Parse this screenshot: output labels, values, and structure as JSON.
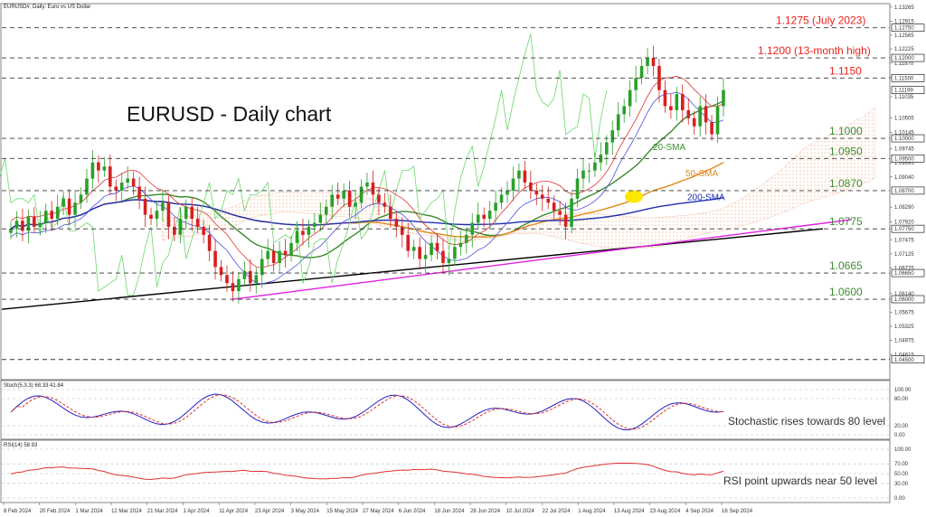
{
  "window": {
    "symbol_caption": "EURUSD#, Daily: Euro vs US Dollar"
  },
  "chart_data": {
    "type": "candlestick",
    "title": "EURUSD - Daily chart",
    "ylim": [
      1.04,
      1.1335
    ],
    "price_ticks": [
      "1.13265",
      "1.12915",
      "1.12565",
      "1.12225",
      "1.11870",
      "1.11525",
      "1.11035",
      "1.10505",
      "1.10145",
      "1.09745",
      "1.09395",
      "1.09040",
      "1.08290",
      "1.07920",
      "1.07475",
      "1.07125",
      "1.06775",
      "1.06140",
      "1.05675",
      "1.05325",
      "1.04975",
      "1.04615"
    ],
    "highlighted_prices": [
      "1.12750",
      "1.12000",
      "1.11500",
      "1.11199",
      "1.10000",
      "1.09500",
      "1.08700",
      "1.07750",
      "1.06650",
      "1.06000",
      "1.04500"
    ],
    "current_price": "1.11199",
    "date_labels": [
      "8 Feb 2024",
      "20 Feb 2024",
      "1 Mar 2024",
      "12 Mar 2024",
      "21 Mar 2024",
      "1 Apr 2024",
      "11 Apr 2024",
      "23 Apr 2024",
      "3 May 2024",
      "15 May 2024",
      "27 May 2024",
      "6 Jun 2024",
      "18 Jun 2024",
      "28 Jun 2024",
      "10 Jul 2024",
      "22 Jul 2024",
      "1 Aug 2024",
      "13 Aug 2024",
      "23 Aug 2024",
      "4 Sep 2024",
      "16 Sep 2024"
    ],
    "levels": [
      {
        "value": 1.1275,
        "label": "1.1275 (July 2023)",
        "color": "#e8221c"
      },
      {
        "value": 1.12,
        "label": "1.1200 (13-month high)",
        "color": "#e8221c"
      },
      {
        "value": 1.115,
        "label": "1.1150",
        "color": "#e8221c"
      },
      {
        "value": 1.1,
        "label": "1.1000",
        "color": "#3c8d2e"
      },
      {
        "value": 1.095,
        "label": "1.0950",
        "color": "#3c8d2e"
      },
      {
        "value": 1.087,
        "label": "1.0870",
        "color": "#3c8d2e"
      },
      {
        "value": 1.0775,
        "label": "1.0775",
        "color": "#3c8d2e"
      },
      {
        "value": 1.0665,
        "label": "1.0665",
        "color": "#3c8d2e"
      },
      {
        "value": 1.06,
        "label": "1.0600",
        "color": "#3c8d2e"
      },
      {
        "value": 1.045,
        "label": "",
        "color": "#3c8d2e"
      }
    ],
    "ma_labels": [
      {
        "label": "20-SMA",
        "color": "#3a8a2a",
        "value": 1.098
      },
      {
        "label": "50-SMA",
        "color": "#e08a1a",
        "value": 1.0915
      },
      {
        "label": "200-SMA",
        "color": "#2030b0",
        "value": 1.0855
      }
    ],
    "closes": [
      1.0775,
      1.0795,
      1.077,
      1.0805,
      1.078,
      1.079,
      1.082,
      1.08,
      1.083,
      1.085,
      1.081,
      1.084,
      1.086,
      1.09,
      1.094,
      1.092,
      1.093,
      1.088,
      1.087,
      1.089,
      1.09,
      1.088,
      1.085,
      1.081,
      1.08,
      1.082,
      1.084,
      1.078,
      1.076,
      1.08,
      1.083,
      1.08,
      1.078,
      1.076,
      1.072,
      1.068,
      1.066,
      1.064,
      1.062,
      1.065,
      1.067,
      1.064,
      1.066,
      1.07,
      1.072,
      1.069,
      1.072,
      1.071,
      1.074,
      1.077,
      1.076,
      1.078,
      1.079,
      1.081,
      1.083,
      1.086,
      1.085,
      1.087,
      1.083,
      1.084,
      1.088,
      1.089,
      1.086,
      1.084,
      1.083,
      1.08,
      1.078,
      1.076,
      1.072,
      1.073,
      1.07,
      1.071,
      1.074,
      1.072,
      1.069,
      1.07,
      1.073,
      1.074,
      1.076,
      1.079,
      1.081,
      1.08,
      1.082,
      1.084,
      1.086,
      1.087,
      1.09,
      1.092,
      1.089,
      1.087,
      1.086,
      1.085,
      1.084,
      1.082,
      1.081,
      1.078,
      1.085,
      1.09,
      1.092,
      1.092,
      1.094,
      1.096,
      1.099,
      1.102,
      1.106,
      1.108,
      1.112,
      1.115,
      1.118,
      1.12,
      1.118,
      1.112,
      1.108,
      1.107,
      1.111,
      1.107,
      1.105,
      1.103,
      1.108,
      1.104,
      1.101,
      1.108,
      1.112
    ],
    "stochastic": {
      "label": "Stoch(5,3,3) 68.33 41.84",
      "ticks": [
        "100.00",
        "80.00",
        "20.00",
        "0.00"
      ],
      "annotation": "Stochastic rises towards 80 level"
    },
    "rsi": {
      "label": "RSI(14) 58.93",
      "ticks": [
        "100.00",
        "70.00",
        "50.00",
        "30.00",
        "0.00"
      ],
      "annotation": "RSI point upwards near 50 level"
    }
  }
}
